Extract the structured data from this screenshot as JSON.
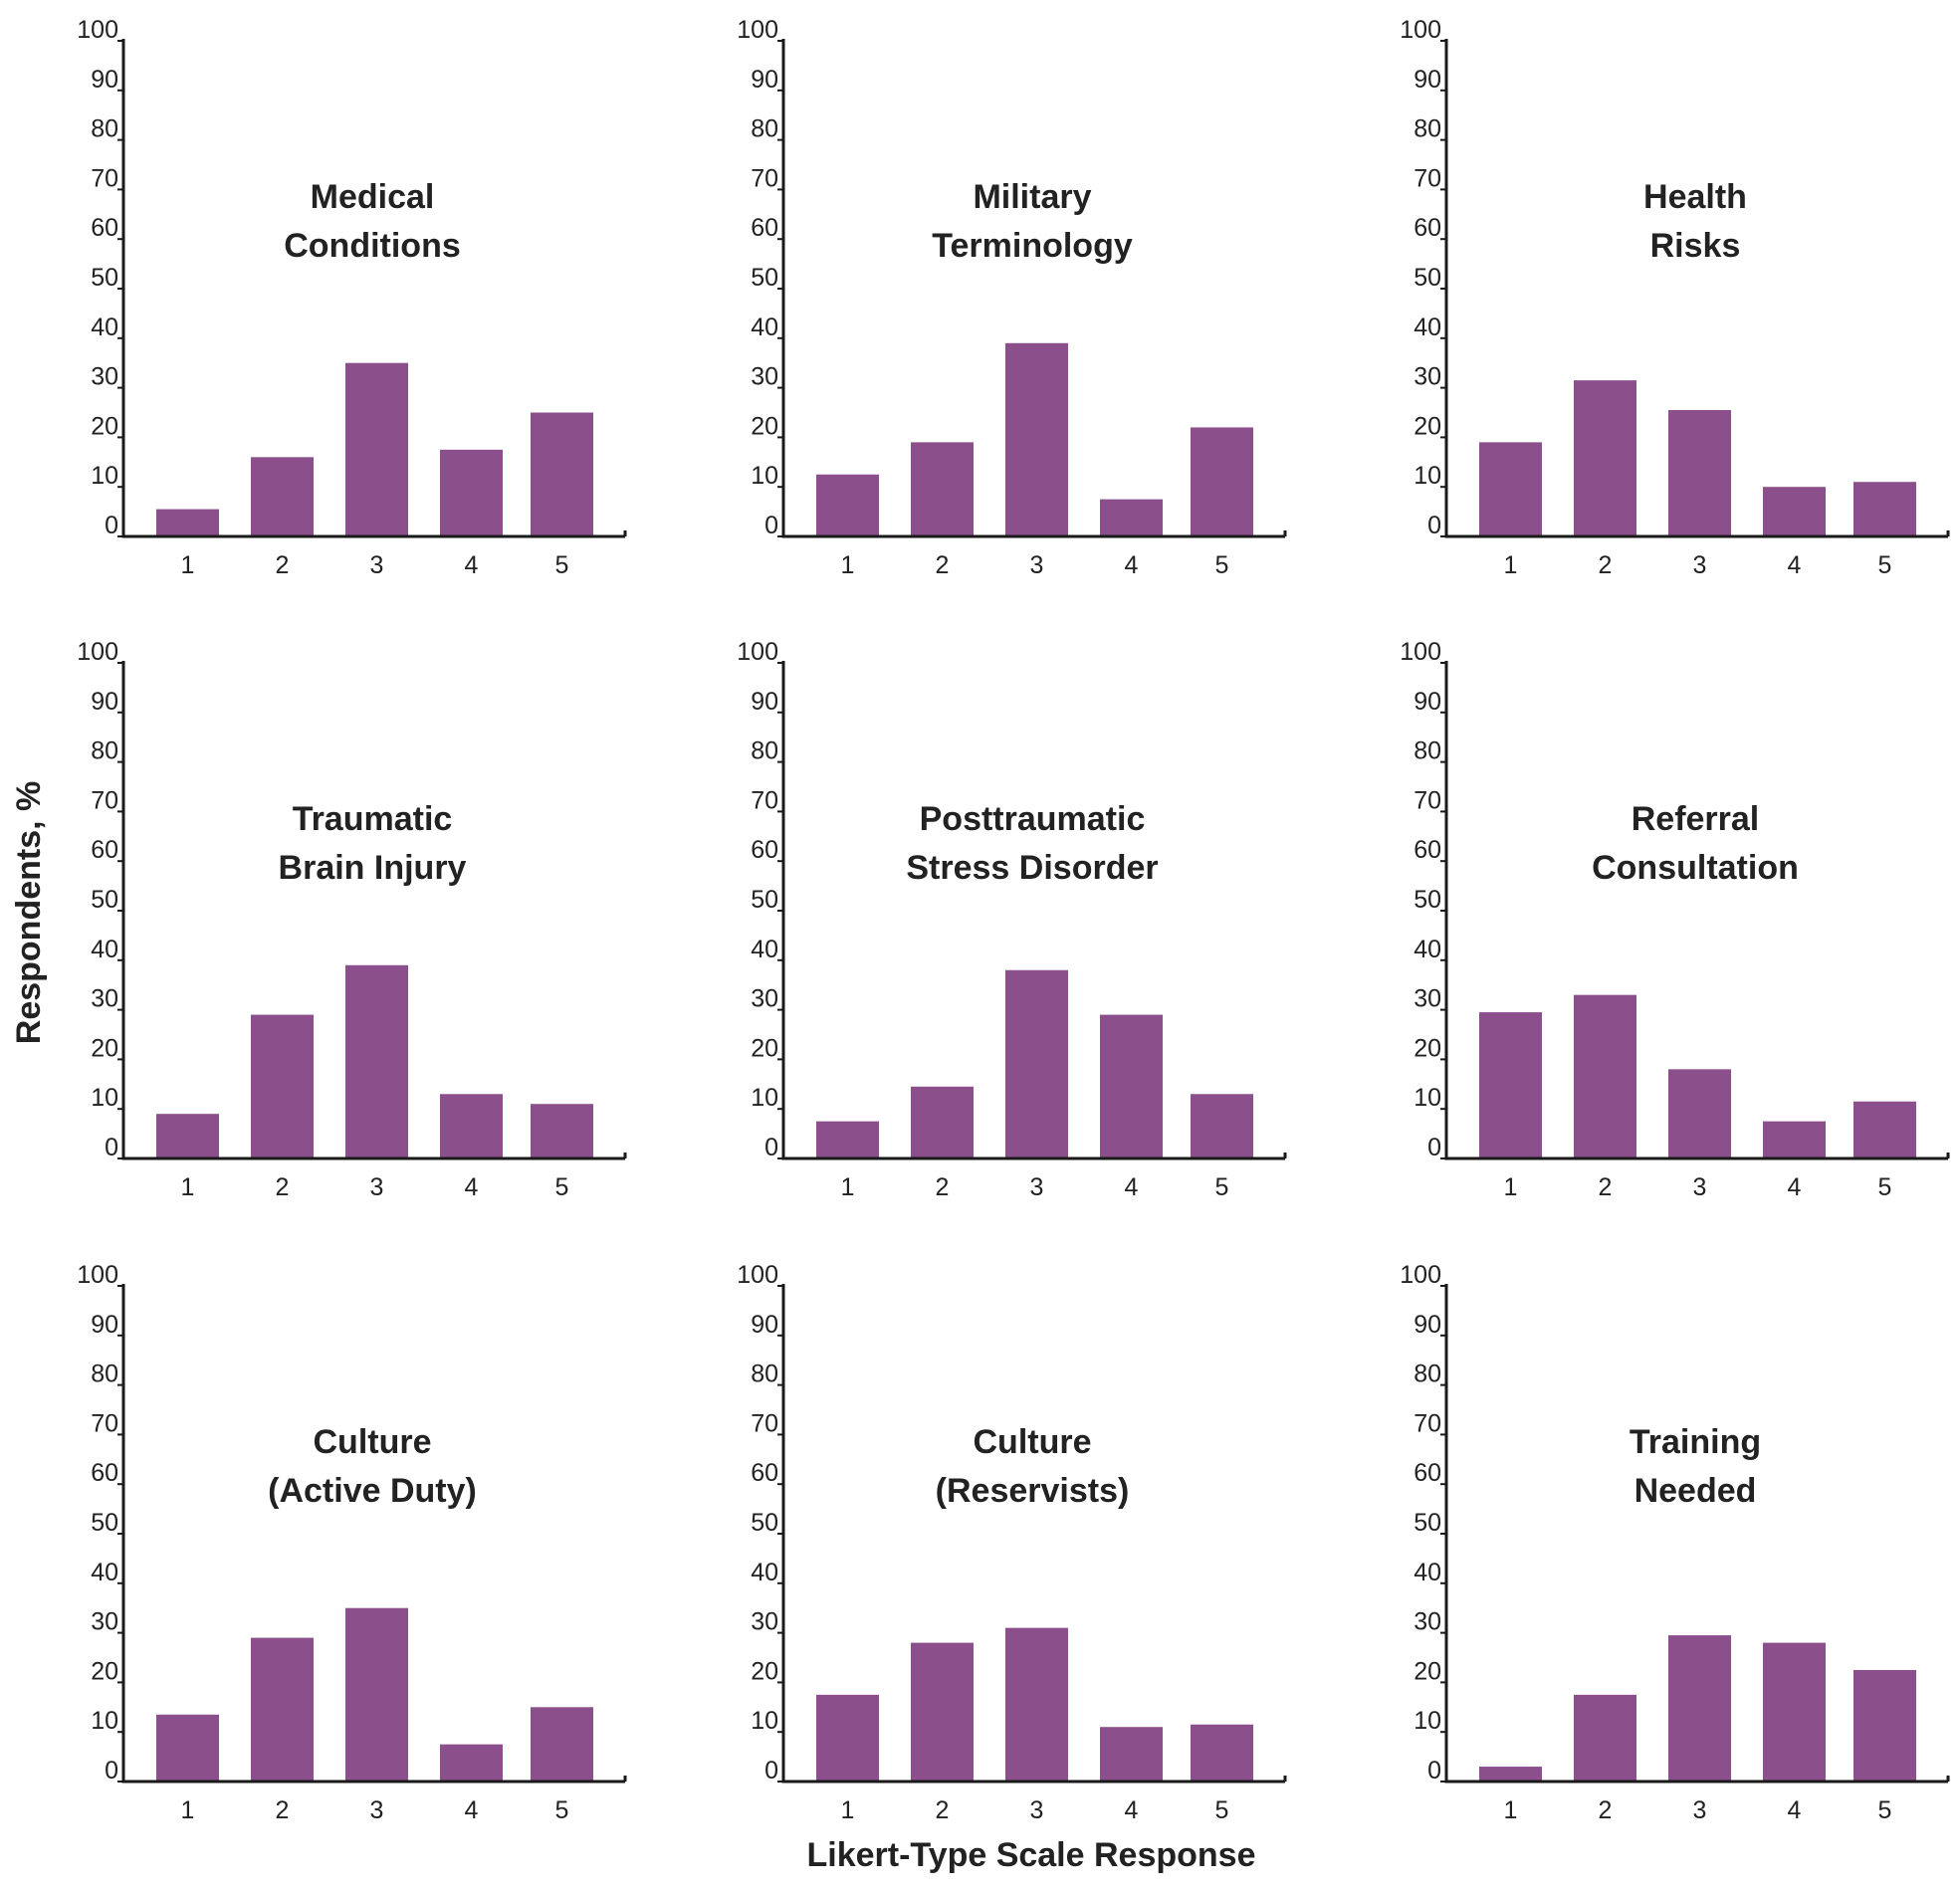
{
  "chart_data": [
    {
      "type": "bar",
      "title_lines": [
        "Medical",
        "Conditions"
      ],
      "categories": [
        "1",
        "2",
        "3",
        "4",
        "5"
      ],
      "values": [
        5.5,
        16,
        35,
        17.5,
        25
      ],
      "ylim": [
        0,
        100
      ],
      "yticks": [
        "0",
        "10",
        "20",
        "30",
        "40",
        "50",
        "60",
        "70",
        "80",
        "90",
        "100"
      ]
    },
    {
      "type": "bar",
      "title_lines": [
        "Military",
        "Terminology"
      ],
      "categories": [
        "1",
        "2",
        "3",
        "4",
        "5"
      ],
      "values": [
        12.5,
        19,
        39,
        7.5,
        22
      ],
      "ylim": [
        0,
        100
      ],
      "yticks": [
        "0",
        "10",
        "20",
        "30",
        "40",
        "50",
        "60",
        "70",
        "80",
        "90",
        "100"
      ]
    },
    {
      "type": "bar",
      "title_lines": [
        "Health",
        "Risks"
      ],
      "categories": [
        "1",
        "2",
        "3",
        "4",
        "5"
      ],
      "values": [
        19,
        31.5,
        25.5,
        10,
        11
      ],
      "ylim": [
        0,
        100
      ],
      "yticks": [
        "0",
        "10",
        "20",
        "30",
        "40",
        "50",
        "60",
        "70",
        "80",
        "90",
        "100"
      ]
    },
    {
      "type": "bar",
      "title_lines": [
        "Traumatic",
        "Brain Injury"
      ],
      "categories": [
        "1",
        "2",
        "3",
        "4",
        "5"
      ],
      "values": [
        9,
        29,
        39,
        13,
        11
      ],
      "ylim": [
        0,
        100
      ],
      "yticks": [
        "0",
        "10",
        "20",
        "30",
        "40",
        "50",
        "60",
        "70",
        "80",
        "90",
        "100"
      ]
    },
    {
      "type": "bar",
      "title_lines": [
        "Posttraumatic",
        "Stress Disorder"
      ],
      "categories": [
        "1",
        "2",
        "3",
        "4",
        "5"
      ],
      "values": [
        7.5,
        14.5,
        38,
        29,
        13
      ],
      "ylim": [
        0,
        100
      ],
      "yticks": [
        "0",
        "10",
        "20",
        "30",
        "40",
        "50",
        "60",
        "70",
        "80",
        "90",
        "100"
      ]
    },
    {
      "type": "bar",
      "title_lines": [
        "Referral",
        "Consultation"
      ],
      "categories": [
        "1",
        "2",
        "3",
        "4",
        "5"
      ],
      "values": [
        29.5,
        33,
        18,
        7.5,
        11.5
      ],
      "ylim": [
        0,
        100
      ],
      "yticks": [
        "0",
        "10",
        "20",
        "30",
        "40",
        "50",
        "60",
        "70",
        "80",
        "90",
        "100"
      ]
    },
    {
      "type": "bar",
      "title_lines": [
        "Culture",
        "(Active Duty)"
      ],
      "categories": [
        "1",
        "2",
        "3",
        "4",
        "5"
      ],
      "values": [
        13.5,
        29,
        35,
        7.5,
        15
      ],
      "ylim": [
        0,
        100
      ],
      "yticks": [
        "0",
        "10",
        "20",
        "30",
        "40",
        "50",
        "60",
        "70",
        "80",
        "90",
        "100"
      ]
    },
    {
      "type": "bar",
      "title_lines": [
        "Culture",
        "(Reservists)"
      ],
      "categories": [
        "1",
        "2",
        "3",
        "4",
        "5"
      ],
      "values": [
        17.5,
        28,
        31,
        11,
        11.5
      ],
      "ylim": [
        0,
        100
      ],
      "yticks": [
        "0",
        "10",
        "20",
        "30",
        "40",
        "50",
        "60",
        "70",
        "80",
        "90",
        "100"
      ]
    },
    {
      "type": "bar",
      "title_lines": [
        "Training",
        "Needed"
      ],
      "categories": [
        "1",
        "2",
        "3",
        "4",
        "5"
      ],
      "values": [
        3,
        17.5,
        29.5,
        28,
        22.5
      ],
      "ylim": [
        0,
        100
      ],
      "yticks": [
        "0",
        "10",
        "20",
        "30",
        "40",
        "50",
        "60",
        "70",
        "80",
        "90",
        "100"
      ]
    }
  ],
  "shared": {
    "ylabel": "Respondents, %",
    "xlabel": "Likert-Type Scale Response",
    "bar_color": "#8b508b",
    "axis_color": "#1a1a1a"
  }
}
